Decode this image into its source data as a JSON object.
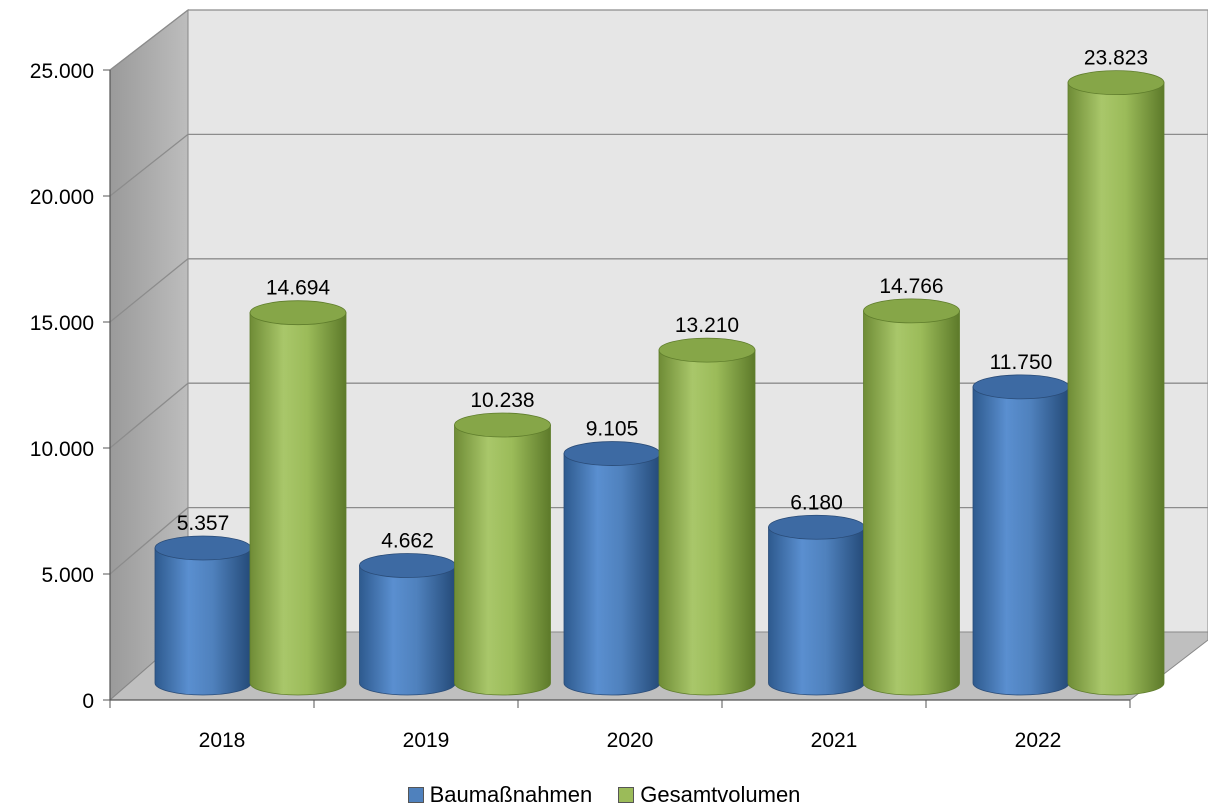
{
  "chart_data": {
    "type": "bar",
    "style": "3d-cylinder",
    "categories": [
      "2018",
      "2019",
      "2020",
      "2021",
      "2022"
    ],
    "series": [
      {
        "name": "Baumaßnahmen",
        "color": "#4f81bd",
        "values": [
          5357,
          4662,
          9105,
          6180,
          11750
        ],
        "labels": [
          "5.357",
          "4.662",
          "9.105",
          "6.180",
          "11.750"
        ]
      },
      {
        "name": "Gesamtvolumen",
        "color": "#9bbb59",
        "values": [
          14694,
          10238,
          13210,
          14766,
          23823
        ],
        "labels": [
          "14.694",
          "10.238",
          "13.210",
          "14.766",
          "23.823"
        ]
      }
    ],
    "y_ticks": [
      0,
      5000,
      10000,
      15000,
      20000,
      25000
    ],
    "y_tick_labels": [
      "0",
      "5.000",
      "10.000",
      "15.000",
      "20.000",
      "25.000"
    ],
    "ylim": [
      0,
      25000
    ],
    "grid": true,
    "legend": "bottom",
    "title": "",
    "xlabel": "",
    "ylabel": ""
  }
}
